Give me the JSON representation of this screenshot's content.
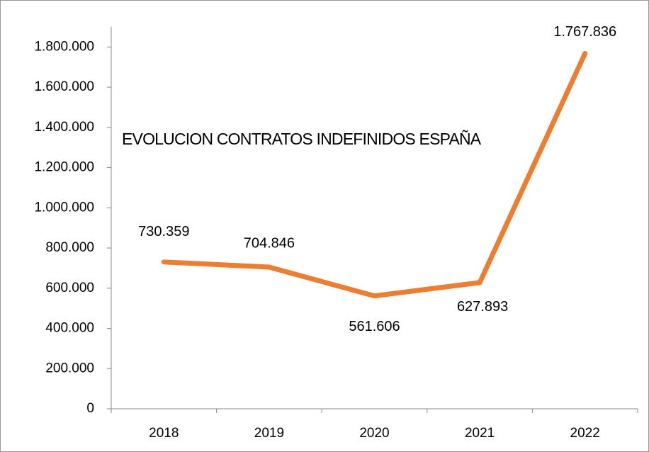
{
  "chart_data": {
    "type": "line",
    "title": "EVOLUCION CONTRATOS INDEFINIDOS ESPAÑA",
    "categories": [
      "2018",
      "2019",
      "2020",
      "2021",
      "2022"
    ],
    "series": [
      {
        "name": "Contratos indefinidos",
        "color": "#ED7D31",
        "values": [
          730359,
          704846,
          561606,
          627893,
          1767836
        ],
        "value_labels": [
          "730.359",
          "704.846",
          "561.606",
          "627.893",
          "1.767.836"
        ]
      }
    ],
    "ylim": [
      0,
      1900000
    ],
    "yticks": [
      0,
      {
        "value": 200000,
        "label": "200.000"
      },
      {
        "value": 400000,
        "label": "400.000"
      },
      {
        "value": 600000,
        "label": "600.000"
      },
      {
        "value": 800000,
        "label": "800.000"
      },
      {
        "value": 1000000,
        "label": "1.000.000"
      },
      {
        "value": 1200000,
        "label": "1.200.000"
      },
      {
        "value": 1400000,
        "label": "1.400.000"
      },
      {
        "value": 1600000,
        "label": "1.600.000"
      },
      {
        "value": 1800000,
        "label": "1.800.000"
      }
    ],
    "grid": false
  }
}
